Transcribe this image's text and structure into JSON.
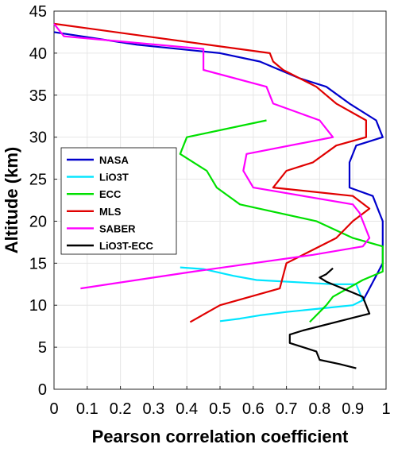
{
  "chart_data": {
    "type": "line",
    "title": "",
    "xlabel": "Pearson correlation coefficient",
    "ylabel": "Altitude (km)",
    "xlim": [
      0,
      1
    ],
    "ylim": [
      0,
      45
    ],
    "xticks": [
      0,
      0.1,
      0.2,
      0.3,
      0.4,
      0.5,
      0.6,
      0.7,
      0.8,
      0.9,
      1
    ],
    "xtick_labels": [
      "0",
      "0.1",
      "0.2",
      "0.3",
      "0.4",
      "0.5",
      "0.6",
      "0.7",
      "0.8",
      "0.9",
      "1"
    ],
    "yticks": [
      0,
      5,
      10,
      15,
      20,
      25,
      30,
      35,
      40,
      45
    ],
    "ytick_labels": [
      "0",
      "5",
      "10",
      "15",
      "20",
      "25",
      "30",
      "35",
      "40",
      "45"
    ],
    "grid": true,
    "legend_position": "left-center",
    "series": [
      {
        "name": "NASA",
        "color": "#0000cc",
        "points": [
          [
            0.0,
            42.5
          ],
          [
            0.25,
            41.0
          ],
          [
            0.5,
            40.0
          ],
          [
            0.62,
            39.0
          ],
          [
            0.74,
            37.0
          ],
          [
            0.82,
            36.0
          ],
          [
            0.89,
            34.0
          ],
          [
            0.97,
            32.0
          ],
          [
            0.99,
            30.0
          ],
          [
            0.91,
            29.0
          ],
          [
            0.89,
            27.0
          ],
          [
            0.89,
            24.0
          ],
          [
            0.96,
            23.0
          ],
          [
            0.98,
            21.0
          ],
          [
            0.99,
            20.0
          ],
          [
            0.99,
            17.0
          ],
          [
            0.99,
            15.0
          ],
          [
            0.97,
            13.5
          ],
          [
            0.95,
            12.0
          ],
          [
            0.93,
            10.5
          ]
        ]
      },
      {
        "name": "LiO3T",
        "color": "#00e5ff",
        "points": [
          [
            0.38,
            14.5
          ],
          [
            0.45,
            14.3
          ],
          [
            0.54,
            13.5
          ],
          [
            0.61,
            13.0
          ],
          [
            0.75,
            12.7
          ],
          [
            0.84,
            12.5
          ],
          [
            0.91,
            12.5
          ],
          [
            0.93,
            10.6
          ],
          [
            0.9,
            10.0
          ],
          [
            0.8,
            9.6
          ],
          [
            0.7,
            9.2
          ],
          [
            0.62,
            8.8
          ],
          [
            0.56,
            8.4
          ],
          [
            0.5,
            8.1
          ]
        ]
      },
      {
        "name": "ECC",
        "color": "#00e000",
        "points": [
          [
            0.64,
            32.0
          ],
          [
            0.4,
            30.0
          ],
          [
            0.38,
            28.0
          ],
          [
            0.46,
            26.0
          ],
          [
            0.49,
            24.0
          ],
          [
            0.56,
            22.0
          ],
          [
            0.79,
            20.0
          ],
          [
            0.9,
            18.0
          ],
          [
            0.99,
            17.0
          ],
          [
            0.99,
            14.0
          ],
          [
            0.93,
            13.0
          ],
          [
            0.84,
            11.0
          ],
          [
            0.82,
            10.0
          ],
          [
            0.77,
            8.0
          ]
        ]
      },
      {
        "name": "MLS",
        "color": "#e00000",
        "points": [
          [
            0.0,
            43.5
          ],
          [
            0.65,
            40.0
          ],
          [
            0.66,
            39.0
          ],
          [
            0.69,
            38.0
          ],
          [
            0.74,
            37.0
          ],
          [
            0.79,
            36.0
          ],
          [
            0.85,
            34.0
          ],
          [
            0.94,
            32.0
          ],
          [
            0.94,
            30.0
          ],
          [
            0.85,
            29.0
          ],
          [
            0.78,
            27.0
          ],
          [
            0.7,
            26.0
          ],
          [
            0.66,
            24.0
          ],
          [
            0.9,
            23.0
          ],
          [
            0.95,
            21.5
          ],
          [
            0.9,
            20.0
          ],
          [
            0.85,
            18.0
          ],
          [
            0.7,
            15.0
          ],
          [
            0.68,
            12.0
          ],
          [
            0.5,
            10.0
          ],
          [
            0.41,
            8.0
          ]
        ]
      },
      {
        "name": "SABER",
        "color": "#ff00ff",
        "points": [
          [
            0.0,
            43.5
          ],
          [
            0.03,
            42.0
          ],
          [
            0.45,
            40.5
          ],
          [
            0.45,
            38.0
          ],
          [
            0.64,
            36.0
          ],
          [
            0.66,
            34.0
          ],
          [
            0.8,
            32.0
          ],
          [
            0.84,
            30.0
          ],
          [
            0.58,
            28.0
          ],
          [
            0.57,
            26.0
          ],
          [
            0.6,
            24.0
          ],
          [
            0.9,
            22.0
          ],
          [
            0.92,
            21.0
          ],
          [
            0.95,
            18.0
          ],
          [
            0.93,
            17.0
          ],
          [
            0.78,
            16.0
          ],
          [
            0.42,
            14.0
          ],
          [
            0.08,
            12.0
          ]
        ]
      },
      {
        "name": "LiO3T-ECC",
        "color": "#000000",
        "points": [
          [
            0.84,
            14.4
          ],
          [
            0.82,
            13.7
          ],
          [
            0.8,
            13.3
          ],
          [
            0.82,
            12.8
          ],
          [
            0.9,
            11.5
          ],
          [
            0.93,
            11.0
          ],
          [
            0.95,
            9.0
          ],
          [
            0.9,
            8.5
          ],
          [
            0.75,
            7.0
          ],
          [
            0.71,
            6.5
          ],
          [
            0.71,
            5.5
          ],
          [
            0.75,
            5.0
          ],
          [
            0.79,
            4.5
          ],
          [
            0.8,
            3.5
          ],
          [
            0.86,
            3.0
          ],
          [
            0.91,
            2.5
          ]
        ]
      }
    ]
  }
}
